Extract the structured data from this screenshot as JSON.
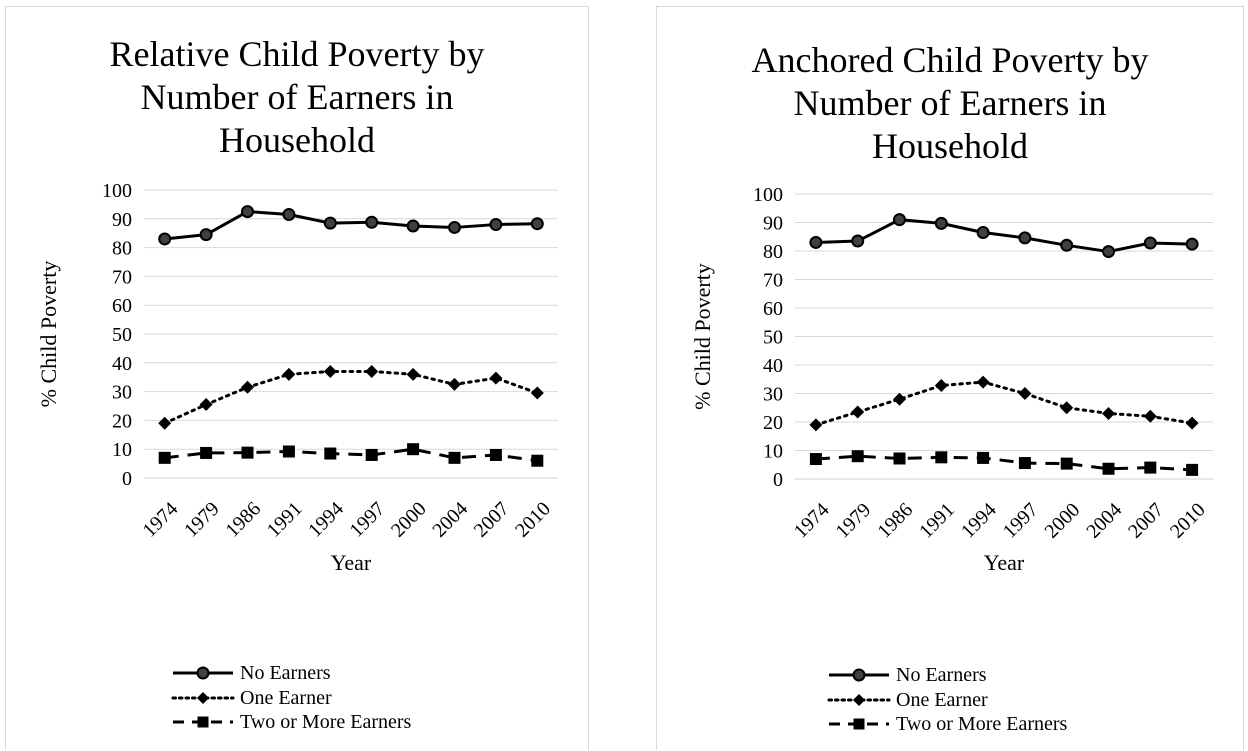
{
  "chart_data": [
    {
      "type": "line",
      "title": "Relative Child Poverty by Number of Earners in Household",
      "xlabel": "Year",
      "ylabel": "% Child Poverty",
      "categories": [
        "1974",
        "1979",
        "1986",
        "1991",
        "1994",
        "1997",
        "2000",
        "2004",
        "2007",
        "2010"
      ],
      "ylim": [
        0,
        100
      ],
      "yticks": [
        "0",
        "10",
        "20",
        "30",
        "40",
        "50",
        "60",
        "70",
        "80",
        "90",
        "100"
      ],
      "grid": true,
      "legend_position": "bottom",
      "series": [
        {
          "name": "No Earners",
          "values": [
            83,
            84.5,
            92.5,
            91.5,
            88.5,
            88.8,
            87.5,
            87,
            88,
            88.3
          ]
        },
        {
          "name": "One Earner",
          "values": [
            19,
            25.5,
            31.5,
            36,
            37,
            37,
            36,
            32.5,
            34.7,
            29.5
          ]
        },
        {
          "name": "Two or More Earners",
          "values": [
            7,
            8.7,
            8.8,
            9.2,
            8.5,
            8,
            10,
            7,
            8,
            6
          ]
        }
      ]
    },
    {
      "type": "line",
      "title": "Anchored Child Poverty by Number of Earners in Household",
      "xlabel": "Year",
      "ylabel": "% Child Poverty",
      "categories": [
        "1974",
        "1979",
        "1986",
        "1991",
        "1994",
        "1997",
        "2000",
        "2004",
        "2007",
        "2010"
      ],
      "ylim": [
        0,
        100
      ],
      "yticks": [
        "0",
        "10",
        "20",
        "30",
        "40",
        "50",
        "60",
        "70",
        "80",
        "90",
        "100"
      ],
      "grid": true,
      "legend_position": "bottom",
      "series": [
        {
          "name": "No Earners",
          "values": [
            83,
            83.5,
            91,
            89.7,
            86.5,
            84.6,
            82,
            79.8,
            82.8,
            82.4
          ]
        },
        {
          "name": "One Earner",
          "values": [
            19,
            23.5,
            28,
            32.8,
            34,
            30,
            25,
            23,
            22,
            19.6
          ]
        },
        {
          "name": "Two or More Earners",
          "values": [
            7,
            8,
            7.2,
            7.6,
            7.4,
            5.6,
            5.4,
            3.6,
            4,
            3.2
          ]
        }
      ]
    }
  ]
}
